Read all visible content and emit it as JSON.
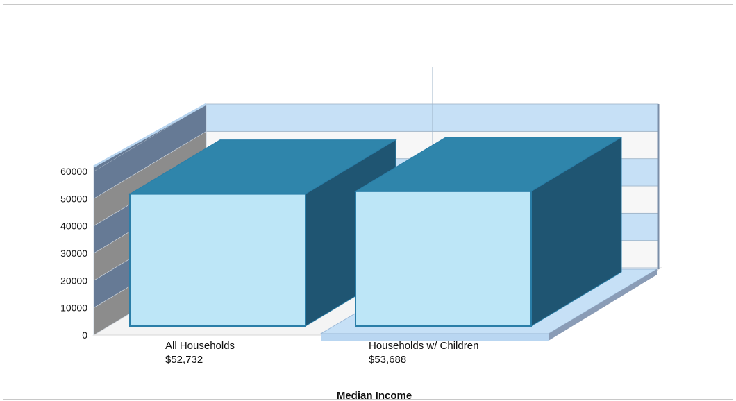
{
  "chart_data": {
    "type": "bar",
    "categories": [
      "All Households",
      "Households w/ Children"
    ],
    "category_value_labels": [
      "$52,732",
      "$53,688"
    ],
    "values": [
      52732,
      53688
    ],
    "title": "",
    "xlabel": "Median Income",
    "ylabel": "",
    "ylim": [
      0,
      60000
    ],
    "yticks": [
      "0",
      "10000",
      "20000",
      "30000",
      "40000",
      "50000",
      "60000"
    ],
    "grid": true,
    "legend": "none",
    "colors": {
      "bar_front": "#bde6f7",
      "bar_top": "#2f85ab",
      "bar_side": "#1f5572",
      "bar_edge": "#2a7ea8",
      "wall_band_light": "#c6e0f6",
      "wall_band_alt": "#f7f7f7",
      "side_wall_dark": "#667a95",
      "side_wall_grey": "#8c8c8c",
      "floor": "#c6e0f6"
    }
  }
}
